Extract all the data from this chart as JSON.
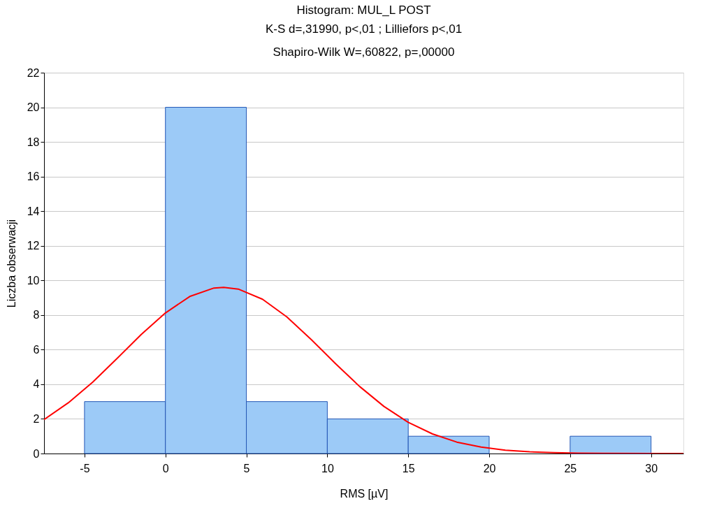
{
  "chart_data": {
    "type": "histogram",
    "title": "Histogram: MUL_L POST",
    "subtitle": "K-S d=,31990, p<,01 ; Lilliefors p<,01",
    "annotations": [
      "Shapiro-Wilk W=,60822, p=,00000"
    ],
    "xlabel": "RMS [µV]",
    "ylabel": "Liczba obserwacji",
    "bins": [
      -5,
      0,
      5,
      10,
      15,
      20,
      25,
      30
    ],
    "values": [
      3,
      20,
      3,
      2,
      1,
      0,
      1
    ],
    "color": "#9ccaf7",
    "series": [
      {
        "type": "line",
        "color": "#ff0000",
        "x": [
          -7.5,
          -6,
          -4.5,
          -3,
          -1.5,
          0,
          1.5,
          3,
          3.6,
          4.5,
          6,
          7.5,
          9,
          10.5,
          12,
          13.5,
          15,
          16.5,
          18,
          19.5,
          21,
          22.5,
          24,
          25.5,
          27,
          30,
          32
        ],
        "values": [
          1.96,
          2.93,
          4.12,
          5.48,
          6.87,
          8.12,
          9.07,
          9.56,
          9.6,
          9.5,
          8.91,
          7.89,
          6.59,
          5.2,
          3.87,
          2.72,
          1.8,
          1.13,
          0.66,
          0.37,
          0.19,
          0.1,
          0.05,
          0.02,
          0.01,
          0,
          0
        ]
      }
    ],
    "xlim": [
      -7.5,
      32
    ],
    "xticks": [
      -5,
      0,
      5,
      10,
      15,
      20,
      25,
      30
    ],
    "ylim": [
      0,
      22
    ],
    "yticks": [
      0,
      2,
      4,
      6,
      8,
      10,
      12,
      14,
      16,
      18,
      20,
      22
    ],
    "grid": "y"
  }
}
